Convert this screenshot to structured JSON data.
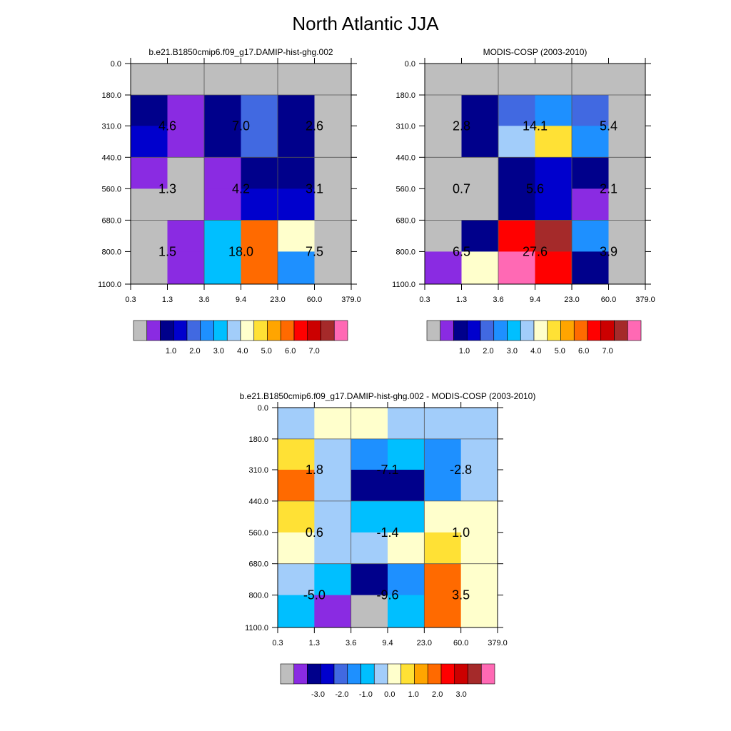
{
  "title": "North Atlantic JJA",
  "chart_data": [
    {
      "type": "heatmap",
      "title": "b.e21.B1850cmip6.f09_g17.DAMIP-hist-ghg.002",
      "x_ticks": [
        "0.3",
        "1.3",
        "3.6",
        "9.4",
        "23.0",
        "60.0",
        "379.0"
      ],
      "y_ticks": [
        "0.0",
        "180.0",
        "310.0",
        "440.0",
        "560.0",
        "680.0",
        "800.0",
        "1100.0"
      ],
      "colorbar": {
        "colors": [
          "#bebebe",
          "#8a2be2",
          "#00008b",
          "#0000cd",
          "#4169e1",
          "#1e90ff",
          "#00bfff",
          "#a2cdfa",
          "#ffffcc",
          "#ffe135",
          "#ffa500",
          "#ff6a00",
          "#ff0000",
          "#cc0000",
          "#a52a2a",
          "#ff69b4"
        ],
        "labels": [
          "1.0",
          "2.0",
          "3.0",
          "4.0",
          "5.0",
          "6.0",
          "7.0"
        ]
      },
      "cells": [
        [
          "#bebebe",
          "#bebebe",
          "#bebebe",
          "#bebebe",
          "#bebebe",
          "#bebebe"
        ],
        [
          "#00008b",
          "#8a2be2",
          "#00008b",
          "#4169e1",
          "#00008b",
          "#bebebe"
        ],
        [
          "#0000cd",
          "#8a2be2",
          "#00008b",
          "#4169e1",
          "#00008b",
          "#bebebe"
        ],
        [
          "#8a2be2",
          "#bebebe",
          "#8a2be2",
          "#00008b",
          "#00008b",
          "#bebebe"
        ],
        [
          "#bebebe",
          "#bebebe",
          "#8a2be2",
          "#0000cd",
          "#0000cd",
          "#bebebe"
        ],
        [
          "#bebebe",
          "#8a2be2",
          "#00bfff",
          "#ff6a00",
          "#ffffcc",
          "#bebebe"
        ],
        [
          "#bebebe",
          "#8a2be2",
          "#00bfff",
          "#ff6a00",
          "#1e90ff",
          "#bebebe"
        ]
      ],
      "annotations": [
        {
          "text": "4.6",
          "col": 1,
          "row": 1
        },
        {
          "text": "7.0",
          "col": 3,
          "row": 1
        },
        {
          "text": "2.6",
          "col": 5,
          "row": 1
        },
        {
          "text": "1.3",
          "col": 1,
          "row": 3
        },
        {
          "text": "4.2",
          "col": 3,
          "row": 3
        },
        {
          "text": "3.1",
          "col": 5,
          "row": 3
        },
        {
          "text": "1.5",
          "col": 1,
          "row": 5
        },
        {
          "text": "18.0",
          "col": 3,
          "row": 5
        },
        {
          "text": "7.5",
          "col": 5,
          "row": 5
        }
      ]
    },
    {
      "type": "heatmap",
      "title": "MODIS-COSP (2003-2010)",
      "x_ticks": [
        "0.3",
        "1.3",
        "3.6",
        "9.4",
        "23.0",
        "60.0",
        "379.0"
      ],
      "y_ticks": [
        "0.0",
        "180.0",
        "310.0",
        "440.0",
        "560.0",
        "680.0",
        "800.0",
        "1100.0"
      ],
      "colorbar": {
        "colors": [
          "#bebebe",
          "#8a2be2",
          "#00008b",
          "#0000cd",
          "#4169e1",
          "#1e90ff",
          "#00bfff",
          "#a2cdfa",
          "#ffffcc",
          "#ffe135",
          "#ffa500",
          "#ff6a00",
          "#ff0000",
          "#cc0000",
          "#a52a2a",
          "#ff69b4"
        ],
        "labels": [
          "1.0",
          "2.0",
          "3.0",
          "4.0",
          "5.0",
          "6.0",
          "7.0"
        ]
      },
      "cells": [
        [
          "#bebebe",
          "#bebebe",
          "#bebebe",
          "#bebebe",
          "#bebebe",
          "#bebebe"
        ],
        [
          "#bebebe",
          "#00008b",
          "#4169e1",
          "#1e90ff",
          "#4169e1",
          "#bebebe"
        ],
        [
          "#bebebe",
          "#00008b",
          "#a2cdfa",
          "#ffe135",
          "#1e90ff",
          "#bebebe"
        ],
        [
          "#bebebe",
          "#bebebe",
          "#00008b",
          "#0000cd",
          "#00008b",
          "#bebebe"
        ],
        [
          "#bebebe",
          "#bebebe",
          "#00008b",
          "#0000cd",
          "#8a2be2",
          "#bebebe"
        ],
        [
          "#bebebe",
          "#00008b",
          "#ff0000",
          "#a52a2a",
          "#1e90ff",
          "#bebebe"
        ],
        [
          "#8a2be2",
          "#ffffcc",
          "#ff69b4",
          "#ff0000",
          "#00008b",
          "#bebebe"
        ]
      ],
      "annotations": [
        {
          "text": "2.8",
          "col": 1,
          "row": 1
        },
        {
          "text": "14.1",
          "col": 3,
          "row": 1
        },
        {
          "text": "5.4",
          "col": 5,
          "row": 1
        },
        {
          "text": "0.7",
          "col": 1,
          "row": 3
        },
        {
          "text": "5.6",
          "col": 3,
          "row": 3
        },
        {
          "text": "2.1",
          "col": 5,
          "row": 3
        },
        {
          "text": "6.5",
          "col": 1,
          "row": 5
        },
        {
          "text": "27.6",
          "col": 3,
          "row": 5
        },
        {
          "text": "3.9",
          "col": 5,
          "row": 5
        }
      ]
    },
    {
      "type": "heatmap",
      "title": "b.e21.B1850cmip6.f09_g17.DAMIP-hist-ghg.002 - MODIS-COSP (2003-2010)",
      "x_ticks": [
        "0.3",
        "1.3",
        "3.6",
        "9.4",
        "23.0",
        "60.0",
        "379.0"
      ],
      "y_ticks": [
        "0.0",
        "180.0",
        "310.0",
        "440.0",
        "560.0",
        "680.0",
        "800.0",
        "1100.0"
      ],
      "colorbar": {
        "colors": [
          "#bebebe",
          "#8a2be2",
          "#00008b",
          "#0000cd",
          "#4169e1",
          "#1e90ff",
          "#00bfff",
          "#a2cdfa",
          "#ffffcc",
          "#ffe135",
          "#ffa500",
          "#ff6a00",
          "#ff0000",
          "#cc0000",
          "#a52a2a",
          "#ff69b4"
        ],
        "labels": [
          "-3.0",
          "-2.0",
          "-1.0",
          "0.0",
          "1.0",
          "2.0",
          "3.0"
        ]
      },
      "cells": [
        [
          "#a2cdfa",
          "#ffffcc",
          "#ffffcc",
          "#a2cdfa",
          "#a2cdfa",
          "#a2cdfa"
        ],
        [
          "#ffe135",
          "#a2cdfa",
          "#1e90ff",
          "#00bfff",
          "#1e90ff",
          "#a2cdfa"
        ],
        [
          "#ff6a00",
          "#a2cdfa",
          "#00008b",
          "#00008b",
          "#1e90ff",
          "#a2cdfa"
        ],
        [
          "#ffe135",
          "#a2cdfa",
          "#00bfff",
          "#00bfff",
          "#ffffcc",
          "#ffffcc"
        ],
        [
          "#ffffcc",
          "#a2cdfa",
          "#a2cdfa",
          "#ffffcc",
          "#ffe135",
          "#ffffcc"
        ],
        [
          "#a2cdfa",
          "#00bfff",
          "#00008b",
          "#1e90ff",
          "#ff6a00",
          "#ffffcc"
        ],
        [
          "#00bfff",
          "#8a2be2",
          "#bebebe",
          "#00bfff",
          "#ff6a00",
          "#ffffcc"
        ]
      ],
      "annotations": [
        {
          "text": "1.8",
          "col": 1,
          "row": 1
        },
        {
          "text": "-7.1",
          "col": 3,
          "row": 1
        },
        {
          "text": "-2.8",
          "col": 5,
          "row": 1
        },
        {
          "text": "0.6",
          "col": 1,
          "row": 3
        },
        {
          "text": "-1.4",
          "col": 3,
          "row": 3
        },
        {
          "text": "1.0",
          "col": 5,
          "row": 3
        },
        {
          "text": "-5.0",
          "col": 1,
          "row": 5
        },
        {
          "text": "-9.6",
          "col": 3,
          "row": 5
        },
        {
          "text": "3.5",
          "col": 5,
          "row": 5
        }
      ]
    }
  ]
}
